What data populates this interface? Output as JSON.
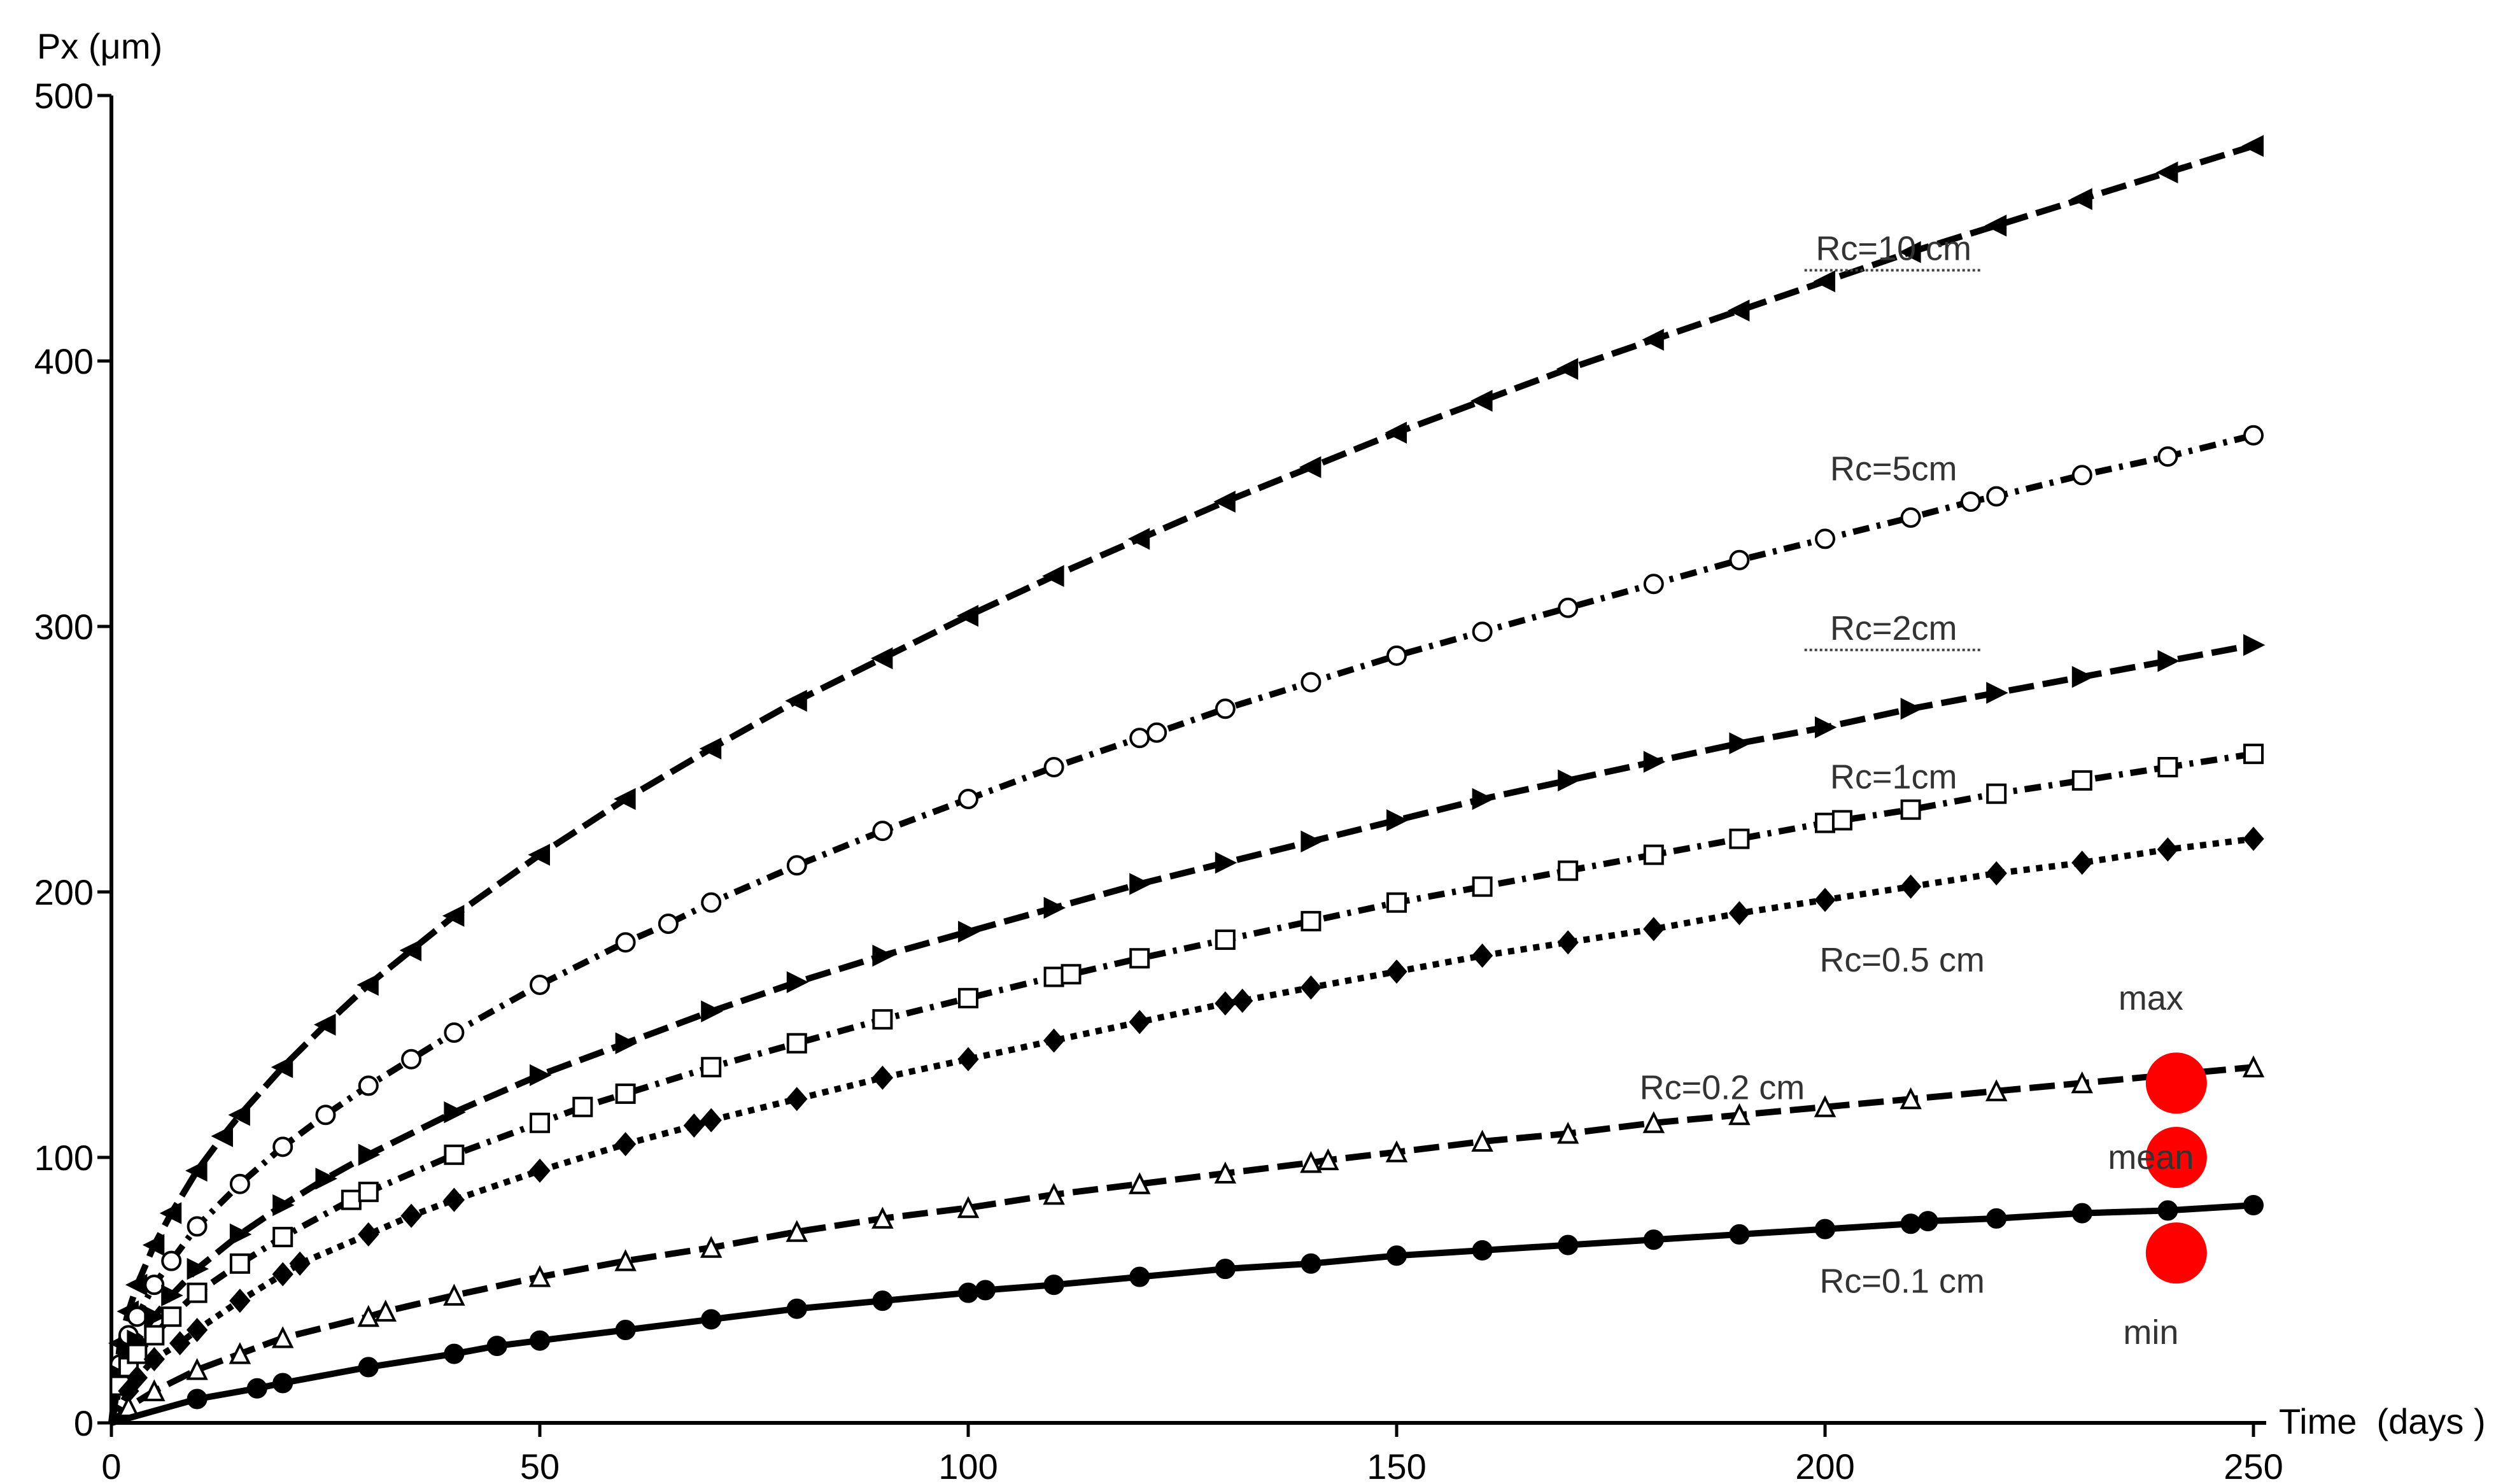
{
  "chart_data": {
    "type": "line",
    "title": "",
    "xlabel": "Time  (days )",
    "ylabel": "Px (μm)",
    "xlim": [
      0,
      250
    ],
    "ylim": [
      0,
      500
    ],
    "xticks": [
      "0",
      "50",
      "100",
      "150",
      "200",
      "250"
    ],
    "yticks": [
      "0",
      "100",
      "200",
      "300",
      "400",
      "500"
    ],
    "grid": false,
    "series": [
      {
        "name": "Rc=10 cm",
        "marker": "triangle-filled",
        "dash": "long-dash",
        "x": [
          1,
          2,
          3,
          5,
          7,
          10,
          13,
          15,
          20,
          25,
          30,
          35,
          40,
          50,
          60,
          70,
          80,
          90,
          100,
          110,
          120,
          130,
          140,
          150,
          160,
          170,
          180,
          190,
          200,
          210,
          220,
          230,
          240,
          250
        ],
        "y": [
          30,
          42,
          52,
          67,
          79,
          95,
          108,
          116,
          134,
          150,
          165,
          178,
          191,
          214,
          235,
          254,
          272,
          288,
          304,
          319,
          333,
          347,
          360,
          373,
          385,
          397,
          408,
          419,
          430,
          441,
          451,
          461,
          471,
          481
        ]
      },
      {
        "name": "Rc=5cm",
        "marker": "circle-open",
        "dash": "dash-dot",
        "x": [
          1,
          2,
          3,
          5,
          7,
          10,
          15,
          20,
          25,
          30,
          35,
          40,
          50,
          60,
          65,
          70,
          80,
          90,
          100,
          110,
          120,
          122,
          130,
          140,
          150,
          160,
          170,
          180,
          190,
          200,
          210,
          217,
          220,
          230,
          240,
          250
        ],
        "y": [
          22,
          33,
          40,
          52,
          61,
          74,
          90,
          104,
          116,
          127,
          137,
          147,
          165,
          181,
          188,
          196,
          210,
          223,
          235,
          247,
          258,
          260,
          269,
          279,
          289,
          298,
          307,
          316,
          325,
          333,
          341,
          347,
          349,
          357,
          364,
          372
        ]
      },
      {
        "name": "Rc=2cm",
        "marker": "triangle-down-filled",
        "dash": "long-dash",
        "x": [
          1,
          2,
          3,
          5,
          7,
          10,
          15,
          20,
          25,
          30,
          40,
          50,
          60,
          70,
          80,
          90,
          100,
          110,
          120,
          130,
          140,
          150,
          160,
          170,
          180,
          190,
          200,
          210,
          220,
          230,
          240,
          250
        ],
        "y": [
          18,
          26,
          31,
          40,
          48,
          58,
          71,
          82,
          92,
          101,
          117,
          131,
          143,
          155,
          166,
          176,
          185,
          194,
          203,
          211,
          219,
          227,
          235,
          242,
          249,
          256,
          262,
          269,
          275,
          281,
          287,
          293
        ]
      },
      {
        "name": "Rc=1cm",
        "marker": "square-open",
        "dash": "dash-dot",
        "x": [
          1,
          2,
          3,
          5,
          7,
          10,
          15,
          20,
          28,
          30,
          40,
          50,
          55,
          60,
          70,
          80,
          90,
          100,
          110,
          112,
          120,
          130,
          140,
          150,
          160,
          170,
          180,
          190,
          200,
          202,
          210,
          220,
          230,
          240,
          250
        ],
        "y": [
          14,
          21,
          26,
          33,
          40,
          49,
          60,
          70,
          84,
          87,
          101,
          113,
          119,
          124,
          134,
          143,
          152,
          160,
          168,
          169,
          175,
          182,
          189,
          196,
          202,
          208,
          214,
          220,
          226,
          227,
          231,
          237,
          242,
          247,
          252
        ]
      },
      {
        "name": "Rc=0.5 cm",
        "marker": "diamond-filled",
        "dash": "dotted",
        "x": [
          2,
          3,
          5,
          8,
          10,
          15,
          20,
          22,
          30,
          35,
          40,
          50,
          60,
          68,
          70,
          80,
          90,
          100,
          110,
          120,
          130,
          132,
          140,
          150,
          160,
          170,
          180,
          190,
          200,
          210,
          220,
          230,
          240,
          250
        ],
        "y": [
          12,
          17,
          24,
          30,
          35,
          46,
          56,
          60,
          71,
          78,
          84,
          95,
          105,
          112,
          114,
          122,
          130,
          137,
          144,
          151,
          158,
          159,
          164,
          170,
          176,
          181,
          186,
          192,
          197,
          202,
          207,
          211,
          216,
          220
        ]
      },
      {
        "name": "Rc=0.2 cm",
        "marker": "triangle-open",
        "dash": "long-dash",
        "x": [
          2,
          5,
          10,
          15,
          20,
          30,
          32,
          40,
          50,
          60,
          70,
          80,
          90,
          100,
          110,
          120,
          130,
          140,
          142,
          150,
          160,
          170,
          180,
          190,
          200,
          210,
          220,
          230,
          240,
          250
        ],
        "y": [
          6,
          12,
          20,
          26,
          32,
          40,
          42,
          48,
          55,
          61,
          66,
          72,
          77,
          81,
          86,
          90,
          94,
          98,
          99,
          102,
          106,
          109,
          113,
          116,
          119,
          122,
          125,
          128,
          131,
          134
        ]
      },
      {
        "name": "Rc=0.1 cm",
        "marker": "circle-filled",
        "dash": "solid",
        "x": [
          10,
          17,
          20,
          30,
          40,
          45,
          50,
          60,
          70,
          80,
          90,
          100,
          102,
          110,
          120,
          130,
          140,
          150,
          160,
          170,
          180,
          190,
          200,
          210,
          212,
          220,
          230,
          240,
          250
        ],
        "y": [
          9,
          13,
          15,
          21,
          26,
          29,
          31,
          35,
          39,
          43,
          46,
          49,
          50,
          52,
          55,
          58,
          60,
          63,
          65,
          67,
          69,
          71,
          73,
          75,
          76,
          77,
          79,
          80,
          82
        ]
      }
    ],
    "series_labels": [
      {
        "text": "Rc=10 cm",
        "x": 208,
        "y": 438,
        "underline": true
      },
      {
        "text": "Rc=5cm",
        "x": 208,
        "y": 355,
        "underline": false
      },
      {
        "text": "Rc=2cm",
        "x": 208,
        "y": 295,
        "underline": true
      },
      {
        "text": "Rc=1cm",
        "x": 208,
        "y": 239,
        "underline": false
      },
      {
        "text": "Rc=0.5 cm",
        "x": 209,
        "y": 170,
        "underline": false
      },
      {
        "text": "Rc=0.2 cm",
        "x": 188,
        "y": 122,
        "underline": false
      },
      {
        "text": "Rc=0.1 cm",
        "x": 209,
        "y": 49,
        "underline": false
      }
    ],
    "reference_points": [
      {
        "label": "max",
        "x": 241,
        "y": 128,
        "color": "#ff0000",
        "label_y": 160
      },
      {
        "label": "mean",
        "x": 241,
        "y": 100,
        "color": "#ff0000",
        "label_y": 100
      },
      {
        "label": "min",
        "x": 241,
        "y": 64,
        "color": "#ff0000",
        "label_y": 34
      }
    ]
  }
}
